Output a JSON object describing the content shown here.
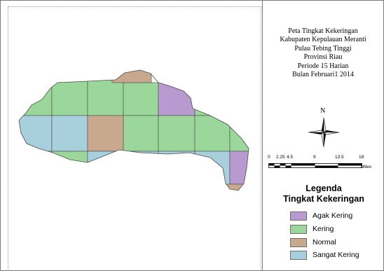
{
  "title": {
    "lines": [
      "Peta Tingkat Kekeringan",
      "Kabupaten Kepulauan Meranti",
      "Pulau Tebing Tinggi",
      "Provinsi Riau",
      "Periode 15 Harian",
      "Bulan Februari1 2014"
    ]
  },
  "north_arrow": {
    "label": "N"
  },
  "scale_bar": {
    "labels": [
      "0",
      "2.25",
      "4.5",
      "9",
      "13.5",
      "18"
    ],
    "unit": "Miles"
  },
  "legend": {
    "title_line1": "Legenda",
    "title_line2": "Tingkat Kekeringan",
    "items": [
      {
        "label": "Agak Kering",
        "color": "#b89ad1"
      },
      {
        "label": "Kering",
        "color": "#9bd79a"
      },
      {
        "label": "Normal",
        "color": "#c9a98e"
      },
      {
        "label": "Sangat Kering",
        "color": "#a8cfdc"
      }
    ]
  },
  "colors": {
    "agak_kering": "#b89ad1",
    "kering": "#9bd79a",
    "normal": "#c9a98e",
    "sangat_kering": "#a8cfdc",
    "outline": "#4a4a4a"
  }
}
